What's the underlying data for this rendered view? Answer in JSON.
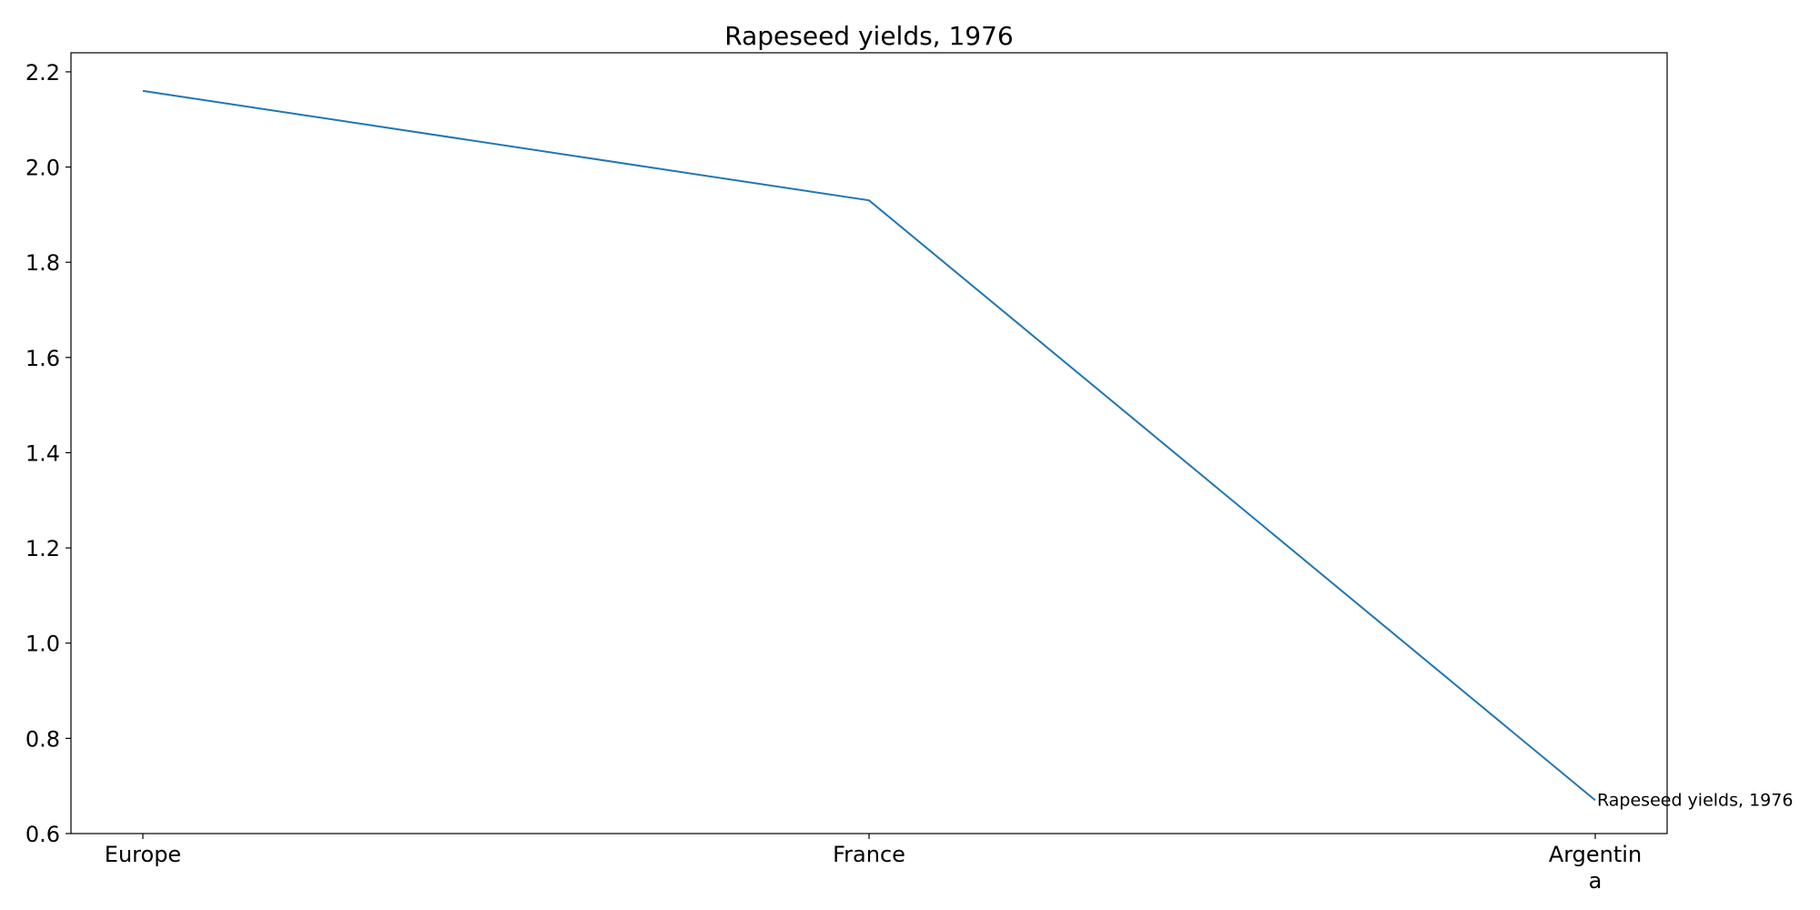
{
  "chart_data": {
    "type": "line",
    "title": "Rapeseed yields, 1976",
    "xlabel": "",
    "ylabel": "",
    "categories": [
      "Europe",
      "France",
      "Argentina"
    ],
    "category_tick_lines": [
      [
        "Europe"
      ],
      [
        "France"
      ],
      [
        "Argentin",
        "a"
      ]
    ],
    "series": [
      {
        "name": "Rapeseed yields, 1976",
        "values": [
          2.16,
          1.93,
          0.67
        ],
        "color": "#1f77b4"
      }
    ],
    "ylim": [
      0.6,
      2.24
    ],
    "yticks": [
      "0.6",
      "0.8",
      "1.0",
      "1.2",
      "1.4",
      "1.6",
      "1.8",
      "2.0",
      "2.2"
    ],
    "grid": false,
    "legend": "none",
    "end_label": "Rapeseed yields, 1976"
  }
}
